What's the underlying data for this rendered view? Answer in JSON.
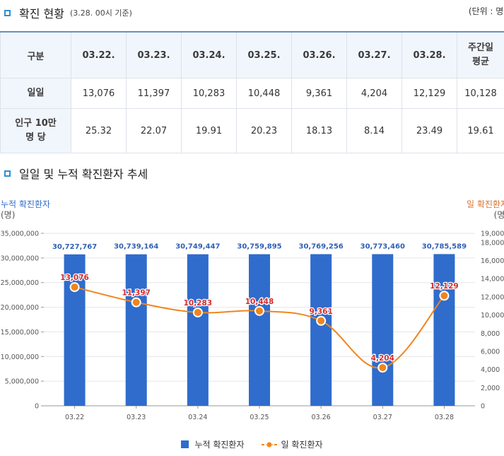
{
  "section1": {
    "title": "확진 현황",
    "subtitle": "(3.28. 00시 기준)",
    "unit": "(단위 : 명)"
  },
  "table": {
    "headers": [
      "구분",
      "03.22.",
      "03.23.",
      "03.24.",
      "03.25.",
      "03.26.",
      "03.27.",
      "03.28.",
      "주간일\n평균"
    ],
    "rows": [
      {
        "label": "일일",
        "values": [
          "13,076",
          "11,397",
          "10,283",
          "10,448",
          "9,361",
          "4,204",
          "12,129",
          "10,128"
        ]
      },
      {
        "label": "인구 10만\n명 당",
        "values": [
          "25.32",
          "22.07",
          "19.91",
          "20.23",
          "18.13",
          "8.14",
          "23.49",
          "19.61"
        ]
      }
    ]
  },
  "section2": {
    "title": "일일 및 누적 확진환자 추세"
  },
  "chart_data": {
    "type": "bar+line",
    "title": "일일 및 누적 확진환자 추세",
    "categories": [
      "03.22",
      "03.23",
      "03.24",
      "03.25",
      "03.26",
      "03.27",
      "03.28"
    ],
    "series": [
      {
        "name": "누적 확진환자",
        "type": "bar",
        "axis": "left",
        "color": "#2f6ccc",
        "values": [
          30727767,
          30739164,
          30749447,
          30759895,
          30769256,
          30773460,
          30785589
        ],
        "labels": [
          "30,727,767",
          "30,739,164",
          "30,749,447",
          "30,759,895",
          "30,769,256",
          "30,773,460",
          "30,785,589"
        ]
      },
      {
        "name": "일 확진환자",
        "type": "line",
        "axis": "right",
        "color": "#f0851d",
        "values": [
          13076,
          11397,
          10283,
          10448,
          9361,
          4204,
          12129
        ],
        "labels": [
          "13,076",
          "11,397",
          "10,283",
          "10,448",
          "9,361",
          "4,204",
          "12,129"
        ]
      }
    ],
    "left_axis": {
      "label": "누적 확진환자",
      "unit": "(명)",
      "ylim": [
        0,
        35000000
      ],
      "ticks": [
        0,
        5000000,
        10000000,
        15000000,
        20000000,
        25000000,
        30000000,
        35000000
      ],
      "tick_labels": [
        "0",
        "5,000,000",
        "10,000,000",
        "15,000,000",
        "20,000,000",
        "25,000,000",
        "30,000,000",
        "35,000,000"
      ]
    },
    "right_axis": {
      "label": "일 확진환자",
      "unit": "(명)",
      "ylim": [
        0,
        19000
      ],
      "ticks": [
        0,
        2000,
        4000,
        6000,
        8000,
        10000,
        12000,
        14000,
        16000,
        18000,
        19000
      ],
      "tick_labels": [
        "0",
        "2,000",
        "4,000",
        "6,000",
        "8,000",
        "10,000",
        "12,000",
        "14,000",
        "16,000",
        "18,000",
        "19,000"
      ]
    },
    "legend": [
      "누적 확진환자",
      "일 확진환자"
    ],
    "legend_position": "bottom"
  }
}
